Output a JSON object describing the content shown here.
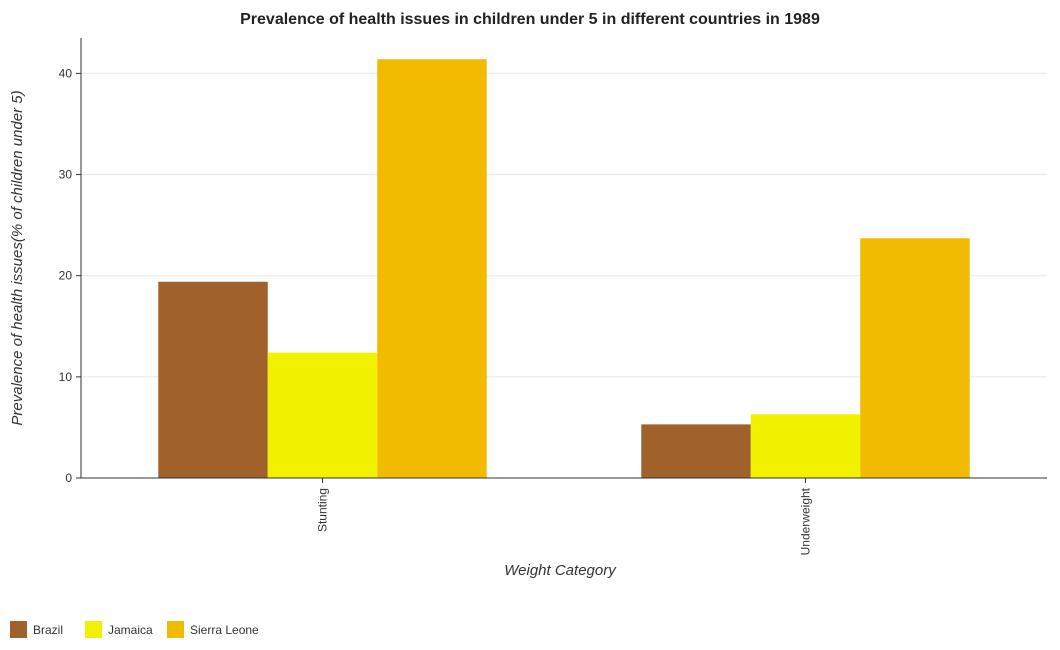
{
  "chart_data": {
    "type": "bar",
    "title": "Prevalence of health issues in children under 5 in different countries in 1989",
    "xlabel": "Weight Category",
    "ylabel": "Prevalence of health issues(% of children under 5)",
    "categories": [
      "Stunting",
      "Underweight"
    ],
    "series": [
      {
        "name": "Brazil",
        "color": "#a0612a",
        "values": [
          19.4,
          5.3
        ]
      },
      {
        "name": "Jamaica",
        "color": "#f2f200",
        "values": [
          12.4,
          6.3
        ]
      },
      {
        "name": "Sierra Leone",
        "color": "#f0bb00",
        "values": [
          41.4,
          23.7
        ]
      }
    ],
    "ylim": [
      0,
      43.5
    ],
    "yticks": [
      0,
      10,
      20,
      30,
      40
    ],
    "grid": true,
    "legend_position": "bottom-left"
  }
}
